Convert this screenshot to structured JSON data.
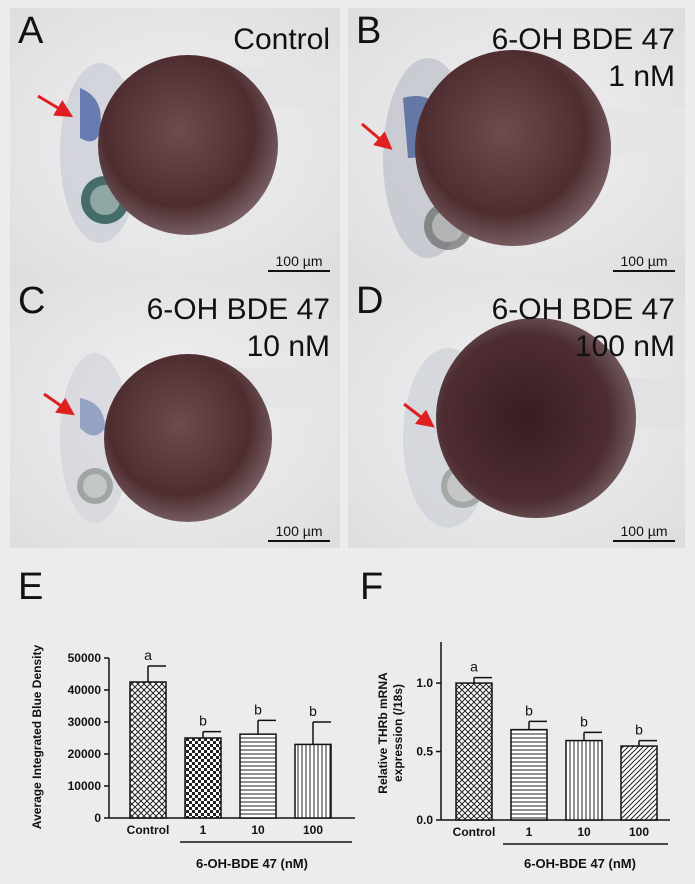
{
  "panels": [
    {
      "letter": "A",
      "title_lines": [
        "Control"
      ],
      "scale": "100 µm"
    },
    {
      "letter": "B",
      "title_lines": [
        "6-OH BDE 47",
        "1 nM"
      ],
      "scale": "100 µm"
    },
    {
      "letter": "C",
      "title_lines": [
        "6-OH BDE 47",
        "10 nM"
      ],
      "scale": "100 µm"
    },
    {
      "letter": "D",
      "title_lines": [
        "6-OH BDE 47",
        "100 nM"
      ],
      "scale": "100 µm"
    }
  ],
  "colors": {
    "embryo": "#4a2a2c",
    "stain": "#2e4a8a",
    "arrow": "#e02020"
  },
  "chart_data": [
    {
      "panel_label": "E",
      "type": "bar",
      "categories": [
        "Control",
        "1",
        "10",
        "100"
      ],
      "values": [
        42500,
        25000,
        26200,
        23000
      ],
      "errors": [
        5000,
        2000,
        4300,
        7000
      ],
      "sig_letters": [
        "a",
        "b",
        "b",
        "b"
      ],
      "patterns": [
        "crosshatch",
        "checker",
        "horizontal",
        "vertical"
      ],
      "ylabel": "Average  Integrated Blue Density",
      "yticks": [
        "0",
        "10000",
        "20000",
        "30000",
        "40000",
        "50000"
      ],
      "ylim": [
        0,
        50000
      ],
      "treatment_label": "6-OH-BDE 47 (nM)"
    },
    {
      "panel_label": "F",
      "type": "bar",
      "categories": [
        "Control",
        "1",
        "10",
        "100"
      ],
      "values": [
        1.0,
        0.66,
        0.58,
        0.54
      ],
      "errors": [
        0.04,
        0.06,
        0.06,
        0.04
      ],
      "sig_letters": [
        "a",
        "b",
        "b",
        "b"
      ],
      "patterns": [
        "crosshatch",
        "horizontal",
        "vertical",
        "diagonal"
      ],
      "ylabel_lines": [
        "Relative THRb mRNA",
        "expression (/18s)"
      ],
      "yticks": [
        "0.0",
        "0.5",
        "1.0"
      ],
      "ylim": [
        0,
        1.3
      ],
      "treatment_label": "6-OH-BDE 47 (nM)"
    }
  ]
}
